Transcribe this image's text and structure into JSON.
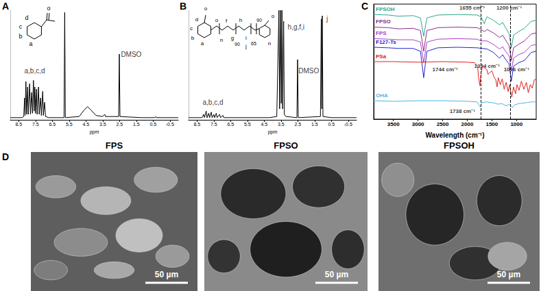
{
  "chart_data": [
    {
      "type": "line",
      "title": "A",
      "xlabel": "ppm",
      "color": "#000000",
      "xlim": [
        9,
        -1
      ],
      "xticks": [
        8.5,
        7.5,
        6.5,
        5.5,
        4.5,
        3.5,
        2.5,
        1.5,
        0.5,
        -0.5
      ],
      "ylim": [
        0,
        1
      ],
      "grid": false,
      "tick_labels": "x",
      "structure": [
        "d",
        "c",
        "b",
        "a",
        "o"
      ],
      "values": [
        [
          9,
          0.02
        ],
        [
          8.3,
          0.02
        ],
        [
          8.2,
          0.03
        ],
        [
          8.15,
          0.2
        ],
        [
          8.12,
          0.04
        ],
        [
          8.07,
          0.35
        ],
        [
          8.03,
          0.05
        ],
        [
          7.97,
          0.3
        ],
        [
          7.93,
          0.05
        ],
        [
          7.85,
          0.33
        ],
        [
          7.8,
          0.05
        ],
        [
          7.73,
          0.25
        ],
        [
          7.68,
          0.06
        ],
        [
          7.62,
          0.36
        ],
        [
          7.58,
          0.08
        ],
        [
          7.54,
          0.3
        ],
        [
          7.5,
          0.06
        ],
        [
          7.44,
          0.28
        ],
        [
          7.4,
          0.05
        ],
        [
          7.32,
          0.3
        ],
        [
          7.28,
          0.05
        ],
        [
          7.2,
          0.2
        ],
        [
          7.15,
          0.04
        ],
        [
          7.07,
          0.26
        ],
        [
          7.03,
          0.04
        ],
        [
          6.96,
          0.16
        ],
        [
          6.9,
          0.03
        ],
        [
          6.7,
          0.02
        ],
        [
          5.8,
          0.02
        ],
        [
          5.76,
          0.98
        ],
        [
          5.72,
          0.02
        ],
        [
          4.9,
          0.03
        ],
        [
          4.6,
          0.09
        ],
        [
          4.4,
          0.12
        ],
        [
          4.2,
          0.09
        ],
        [
          3.9,
          0.04
        ],
        [
          3.5,
          0.03
        ],
        [
          3.38,
          0.05
        ],
        [
          3.33,
          0.03
        ],
        [
          2.55,
          0.03
        ],
        [
          2.51,
          0.6
        ],
        [
          2.47,
          0.03
        ],
        [
          1.2,
          0.02
        ],
        [
          0.4,
          0.02
        ],
        [
          0.35,
          0.03
        ],
        [
          0.3,
          0.02
        ],
        [
          -1,
          0.02
        ]
      ],
      "annotations": [
        {
          "text": "a,b,c,d",
          "x": 7.55,
          "y": 0.45
        },
        {
          "text": "DMSO",
          "x": 1.8,
          "y": 0.6
        }
      ]
    },
    {
      "type": "line",
      "title": "B",
      "xlabel": "ppm",
      "color": "#000000",
      "xlim": [
        9,
        -1
      ],
      "xticks": [
        8.5,
        7.5,
        6.5,
        5.5,
        4.5,
        3.5,
        2.5,
        1.5,
        0.5,
        -0.5
      ],
      "ylim": [
        0,
        1
      ],
      "grid": false,
      "tick_labels": "x",
      "structure": [
        "o",
        "d",
        "c",
        "b",
        "a",
        "o",
        "n",
        "f",
        "g",
        "90",
        "h",
        "i",
        "j",
        "65",
        "90",
        "n",
        "o"
      ],
      "values": [
        [
          9,
          0.02
        ],
        [
          8.2,
          0.02
        ],
        [
          8.1,
          0.05
        ],
        [
          8.05,
          0.02
        ],
        [
          7.95,
          0.08
        ],
        [
          7.9,
          0.02
        ],
        [
          7.8,
          0.06
        ],
        [
          7.75,
          0.02
        ],
        [
          7.65,
          0.07
        ],
        [
          7.6,
          0.02
        ],
        [
          7.5,
          0.05
        ],
        [
          7.45,
          0.02
        ],
        [
          7.35,
          0.06
        ],
        [
          7.3,
          0.02
        ],
        [
          7.15,
          0.05
        ],
        [
          7.1,
          0.02
        ],
        [
          6.95,
          0.04
        ],
        [
          6.9,
          0.02
        ],
        [
          4.2,
          0.02
        ],
        [
          3.75,
          0.03
        ],
        [
          3.62,
          1.0
        ],
        [
          3.58,
          0.1
        ],
        [
          3.52,
          1.0
        ],
        [
          3.48,
          0.15
        ],
        [
          3.44,
          1.0
        ],
        [
          3.4,
          0.1
        ],
        [
          3.34,
          0.9
        ],
        [
          3.3,
          0.05
        ],
        [
          3.2,
          0.03
        ],
        [
          2.55,
          0.02
        ],
        [
          2.51,
          0.55
        ],
        [
          2.47,
          0.02
        ],
        [
          1.15,
          0.03
        ],
        [
          1.1,
          0.92
        ],
        [
          1.07,
          0.1
        ],
        [
          1.04,
          0.95
        ],
        [
          1.0,
          0.03
        ],
        [
          0.5,
          0.02
        ],
        [
          -1,
          0.02
        ]
      ],
      "annotations": [
        {
          "text": "a,b,c,d",
          "x": 7.55,
          "y": 0.16
        },
        {
          "text": "h,g,f,i",
          "x": 2.6,
          "y": 0.85
        },
        {
          "text": "DMSO",
          "x": 1.85,
          "y": 0.45
        },
        {
          "text": "j",
          "x": 0.75,
          "y": 0.92
        }
      ]
    },
    {
      "type": "line",
      "title": "C",
      "xlabel": "Wavelength (cm⁻¹)",
      "xlim": [
        3900,
        600
      ],
      "xticks": [
        3500,
        3000,
        2500,
        2000,
        1500,
        1000
      ],
      "ylim": [
        0,
        10
      ],
      "grid": false,
      "tick_labels": "x",
      "reference_lines": [
        1720,
        1120
      ],
      "series": [
        {
          "name": "FPSOH",
          "color": "#2aa889",
          "values": [
            [
              3900,
              9.1
            ],
            [
              3600,
              9.05
            ],
            [
              3400,
              8.95
            ],
            [
              3100,
              9.0
            ],
            [
              2950,
              8.8
            ],
            [
              2885,
              7.2
            ],
            [
              2820,
              8.8
            ],
            [
              2600,
              9.05
            ],
            [
              2200,
              9.1
            ],
            [
              1800,
              9.05
            ],
            [
              1720,
              8.9
            ],
            [
              1655,
              8.3
            ],
            [
              1600,
              8.9
            ],
            [
              1470,
              8.6
            ],
            [
              1345,
              8.2
            ],
            [
              1280,
              8.4
            ],
            [
              1240,
              8.1
            ],
            [
              1200,
              7.8
            ],
            [
              1150,
              7.4
            ],
            [
              1105,
              6.2
            ],
            [
              1060,
              7.3
            ],
            [
              960,
              7.6
            ],
            [
              840,
              7.9
            ],
            [
              700,
              8.5
            ],
            [
              600,
              8.6
            ]
          ]
        },
        {
          "name": "FPSO",
          "color": "#8e2b8e",
          "values": [
            [
              3900,
              8.0
            ],
            [
              3600,
              7.95
            ],
            [
              3400,
              7.85
            ],
            [
              3100,
              7.9
            ],
            [
              2950,
              7.7
            ],
            [
              2885,
              5.9
            ],
            [
              2820,
              7.7
            ],
            [
              2600,
              7.95
            ],
            [
              2200,
              8.0
            ],
            [
              1800,
              7.95
            ],
            [
              1720,
              7.8
            ],
            [
              1650,
              7.6
            ],
            [
              1600,
              7.8
            ],
            [
              1470,
              7.5
            ],
            [
              1345,
              7.1
            ],
            [
              1280,
              7.3
            ],
            [
              1240,
              7.0
            ],
            [
              1150,
              6.4
            ],
            [
              1105,
              5.1
            ],
            [
              1060,
              6.2
            ],
            [
              960,
              6.5
            ],
            [
              840,
              6.8
            ],
            [
              700,
              7.4
            ],
            [
              600,
              7.5
            ]
          ]
        },
        {
          "name": "FPS",
          "color": "#b03cc8",
          "values": [
            [
              3900,
              7.0
            ],
            [
              3600,
              6.95
            ],
            [
              3400,
              6.9
            ],
            [
              3100,
              6.9
            ],
            [
              2950,
              6.7
            ],
            [
              2885,
              4.9
            ],
            [
              2820,
              6.7
            ],
            [
              2600,
              6.95
            ],
            [
              2200,
              7.0
            ],
            [
              1800,
              6.95
            ],
            [
              1720,
              6.8
            ],
            [
              1600,
              6.8
            ],
            [
              1470,
              6.5
            ],
            [
              1345,
              6.1
            ],
            [
              1280,
              6.3
            ],
            [
              1240,
              6.0
            ],
            [
              1150,
              5.5
            ],
            [
              1105,
              4.2
            ],
            [
              1060,
              5.3
            ],
            [
              960,
              5.6
            ],
            [
              840,
              5.8
            ],
            [
              700,
              6.4
            ],
            [
              600,
              6.5
            ]
          ]
        },
        {
          "name": "F127-Ts",
          "color": "#2323d0",
          "values": [
            [
              3900,
              6.25
            ],
            [
              3600,
              6.2
            ],
            [
              3400,
              6.15
            ],
            [
              3100,
              6.15
            ],
            [
              2950,
              5.9
            ],
            [
              2885,
              3.6
            ],
            [
              2820,
              5.9
            ],
            [
              2600,
              6.2
            ],
            [
              2200,
              6.25
            ],
            [
              1800,
              6.2
            ],
            [
              1600,
              6.1
            ],
            [
              1470,
              5.8
            ],
            [
              1345,
              5.3
            ],
            [
              1280,
              5.6
            ],
            [
              1240,
              5.3
            ],
            [
              1150,
              4.8
            ],
            [
              1105,
              3.3
            ],
            [
              1060,
              4.6
            ],
            [
              960,
              4.9
            ],
            [
              840,
              5.1
            ],
            [
              700,
              5.8
            ],
            [
              600,
              5.9
            ]
          ]
        },
        {
          "name": "PSa",
          "color": "#e02020",
          "values": [
            [
              3900,
              5.0
            ],
            [
              3500,
              5.0
            ],
            [
              3000,
              4.95
            ],
            [
              2500,
              5.0
            ],
            [
              2000,
              4.95
            ],
            [
              1850,
              4.9
            ],
            [
              1790,
              4.6
            ],
            [
              1770,
              3.6
            ],
            [
              1744,
              2.9
            ],
            [
              1720,
              4.0
            ],
            [
              1690,
              4.6
            ],
            [
              1600,
              4.3
            ],
            [
              1580,
              3.9
            ],
            [
              1500,
              4.2
            ],
            [
              1460,
              3.7
            ],
            [
              1420,
              3.4
            ],
            [
              1394,
              2.8
            ],
            [
              1370,
              3.6
            ],
            [
              1330,
              3.0
            ],
            [
              1290,
              3.5
            ],
            [
              1250,
              2.6
            ],
            [
              1210,
              3.2
            ],
            [
              1170,
              2.4
            ],
            [
              1140,
              3.0
            ],
            [
              1096,
              1.9
            ],
            [
              1060,
              2.8
            ],
            [
              1020,
              2.2
            ],
            [
              990,
              3.0
            ],
            [
              950,
              2.5
            ],
            [
              900,
              3.3
            ],
            [
              850,
              2.6
            ],
            [
              800,
              3.2
            ],
            [
              760,
              2.3
            ],
            [
              720,
              3.0
            ],
            [
              680,
              2.7
            ],
            [
              640,
              3.4
            ],
            [
              600,
              3.5
            ]
          ]
        },
        {
          "name": "OHA",
          "color": "#49b6e8",
          "values": [
            [
              3900,
              1.6
            ],
            [
              3500,
              1.55
            ],
            [
              3000,
              1.6
            ],
            [
              2500,
              1.6
            ],
            [
              2000,
              1.55
            ],
            [
              1800,
              1.5
            ],
            [
              1738,
              1.05
            ],
            [
              1700,
              1.45
            ],
            [
              1600,
              1.5
            ],
            [
              1450,
              1.4
            ],
            [
              1380,
              1.3
            ],
            [
              1300,
              1.35
            ],
            [
              1200,
              1.15
            ],
            [
              1150,
              1.3
            ],
            [
              1080,
              1.0
            ],
            [
              1040,
              1.25
            ],
            [
              950,
              1.35
            ],
            [
              850,
              1.4
            ],
            [
              700,
              1.5
            ],
            [
              600,
              1.5
            ]
          ]
        }
      ],
      "annotations": [
        {
          "text": "1655 cm⁻¹",
          "x": 1900,
          "y": 9.7
        },
        {
          "text": "1200 cm⁻¹",
          "x": 1150,
          "y": 9.7
        },
        {
          "text": "1744 cm⁻¹",
          "x": 2450,
          "y": 4.3
        },
        {
          "text": "1394 cm⁻¹",
          "x": 1600,
          "y": 4.6
        },
        {
          "text": "1096 cm⁻¹",
          "x": 1000,
          "y": 4.3
        },
        {
          "text": "1738 cm⁻¹",
          "x": 2100,
          "y": 0.7
        }
      ]
    }
  ],
  "image_panel": {
    "title": "D",
    "images": [
      {
        "title": "FPS",
        "scale_bar": "50 µm"
      },
      {
        "title": "FPSO",
        "scale_bar": "50 µm"
      },
      {
        "title": "FPSOH",
        "scale_bar": "50 µm"
      }
    ]
  }
}
